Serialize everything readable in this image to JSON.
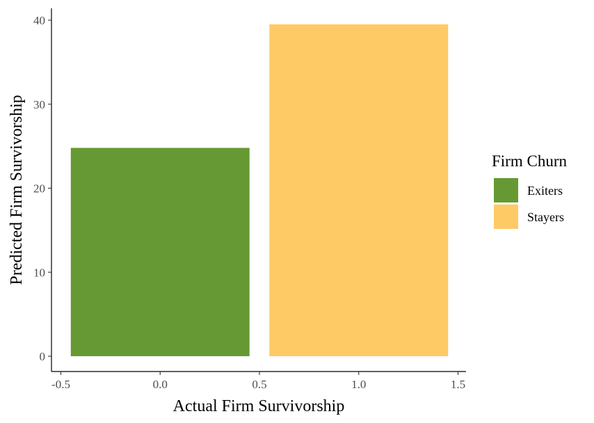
{
  "chart_data": {
    "type": "bar",
    "title": "",
    "xlabel": "Actual Firm Survivorship",
    "ylabel": "Predicted Firm Survivorship",
    "xlim": [
      -0.5,
      1.5
    ],
    "ylim": [
      0,
      40
    ],
    "xticks": [
      -0.5,
      0.0,
      0.5,
      1.0,
      1.5
    ],
    "xtick_labels": [
      "-0.5",
      "0.0",
      "0.5",
      "1.0",
      "1.5"
    ],
    "yticks": [
      0,
      10,
      20,
      30,
      40
    ],
    "ytick_labels": [
      "0",
      "10",
      "20",
      "30",
      "40"
    ],
    "grid": false,
    "legend": {
      "title": "Firm Churn",
      "placement": "right",
      "entries": [
        "Exiters",
        "Stayers"
      ]
    },
    "series": [
      {
        "name": "Exiters",
        "x": 0,
        "width": 0.9,
        "value": 24.8,
        "color": "#669933"
      },
      {
        "name": "Stayers",
        "x": 1,
        "width": 0.9,
        "value": 39.5,
        "color": "#FECA66"
      }
    ]
  }
}
